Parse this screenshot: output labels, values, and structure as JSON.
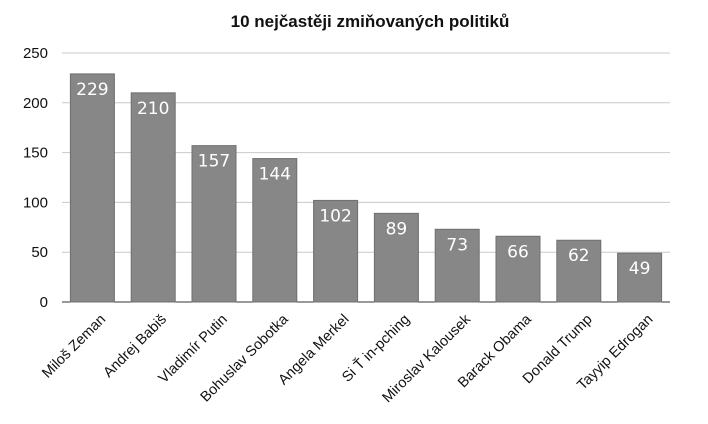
{
  "chart_data": {
    "type": "bar",
    "title": "10 nejčastěji zmiňovaných politiků",
    "xlabel": "",
    "ylabel": "",
    "categories": [
      "Miloš Zeman",
      "Andrej Babiš",
      "Vladimír Putin",
      "Bohuslav Sobotka",
      "Angela Merkel",
      "Si Ť in-pching",
      "Miroslav Kalousek",
      "Barack Obama",
      "Donald Trump",
      "Tayyip Edrogan"
    ],
    "values": [
      229,
      210,
      157,
      144,
      102,
      89,
      73,
      66,
      62,
      49
    ],
    "ylim": [
      0,
      250
    ],
    "yticks": [
      0,
      50,
      100,
      150,
      200,
      250
    ],
    "grid": true,
    "legend": "none",
    "colors": {
      "bar": "#878787",
      "bar_edge": "#6f6f6f",
      "label": "#ffffff"
    }
  }
}
